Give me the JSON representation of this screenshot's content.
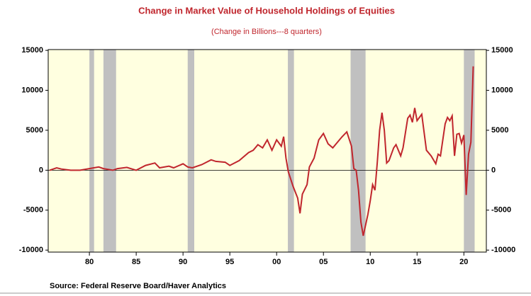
{
  "chart_data": {
    "type": "line",
    "title": "Change in Market Value of Household Holdings of Equities",
    "subtitle": "(Change in Billions---8 quarters)",
    "source": "Source:  Federal Reserve Board/Haver Analytics",
    "x": [
      1975.75,
      1976.5,
      1977,
      1978,
      1979,
      1980,
      1981,
      1981.5,
      1982.5,
      1983,
      1984,
      1985,
      1986,
      1987,
      1987.5,
      1988.5,
      1989,
      1990,
      1990.5,
      1991,
      1992,
      1993,
      1993.5,
      1994.5,
      1995,
      1996,
      1997,
      1997.5,
      1998,
      1998.5,
      1999,
      1999.5,
      2000,
      2000.5,
      2000.75,
      2001,
      2001.25,
      2001.75,
      2002.25,
      2002.5,
      2002.75,
      2003.25,
      2003.5,
      2004,
      2004.5,
      2005,
      2005.5,
      2006,
      2006.5,
      2007,
      2007.5,
      2008,
      2008.25,
      2008.5,
      2008.75,
      2009,
      2009.25,
      2009.75,
      2010,
      2010.25,
      2010.5,
      2010.75,
      2011,
      2011.25,
      2011.5,
      2011.75,
      2012,
      2012.5,
      2012.75,
      2013.25,
      2013.5,
      2014,
      2014.25,
      2014.5,
      2014.75,
      2015,
      2015.5,
      2016,
      2016.5,
      2017,
      2017.25,
      2017.5,
      2018,
      2018.25,
      2018.5,
      2018.75,
      2019,
      2019.25,
      2019.5,
      2019.75,
      2020,
      2020.25,
      2020.5,
      2020.75,
      2021
    ],
    "series": [
      {
        "name": "Change in Market Value",
        "color": "#c0262d",
        "values": [
          0,
          300,
          150,
          0,
          0,
          200,
          400,
          200,
          0,
          200,
          350,
          0,
          600,
          900,
          300,
          500,
          300,
          800,
          400,
          300,
          700,
          1300,
          1100,
          1000,
          600,
          1200,
          2200,
          2500,
          3200,
          2800,
          3800,
          2500,
          3800,
          3000,
          4200,
          1500,
          -200,
          -2000,
          -3500,
          -5400,
          -3000,
          -1800,
          400,
          1500,
          3800,
          4600,
          3300,
          2800,
          3500,
          4200,
          4800,
          3000,
          200,
          0,
          -2500,
          -6500,
          -8200,
          -5500,
          -3800,
          -1800,
          -2500,
          1000,
          5000,
          7200,
          5000,
          900,
          1200,
          2800,
          3200,
          1800,
          2800,
          6500,
          6900,
          6000,
          7800,
          6200,
          7000,
          2500,
          1800,
          800,
          2000,
          1800,
          5800,
          6600,
          6200,
          6800,
          1800,
          4500,
          4600,
          3400,
          4400,
          -3100,
          2000,
          3500,
          13000
        ]
      }
    ],
    "shaded_periods": [
      [
        1980.0,
        1980.5
      ],
      [
        1981.5,
        1982.85
      ],
      [
        1990.5,
        1991.2
      ],
      [
        2001.2,
        2001.85
      ],
      [
        2007.9,
        2009.5
      ],
      [
        2020.0,
        2021.15
      ]
    ],
    "xlim": [
      1975.6,
      2022.4
    ],
    "xticks": [
      {
        "value": 1980,
        "label": "80"
      },
      {
        "value": 1985,
        "label": "85"
      },
      {
        "value": 1990,
        "label": "90"
      },
      {
        "value": 1995,
        "label": "95"
      },
      {
        "value": 2000,
        "label": "00"
      },
      {
        "value": 2005,
        "label": "05"
      },
      {
        "value": 2010,
        "label": "10"
      },
      {
        "value": 2015,
        "label": "15"
      },
      {
        "value": 2020,
        "label": "20"
      }
    ],
    "ylim": [
      -10250,
      15100
    ],
    "yticks": [
      -10000,
      -5000,
      0,
      5000,
      10000,
      15000
    ]
  }
}
